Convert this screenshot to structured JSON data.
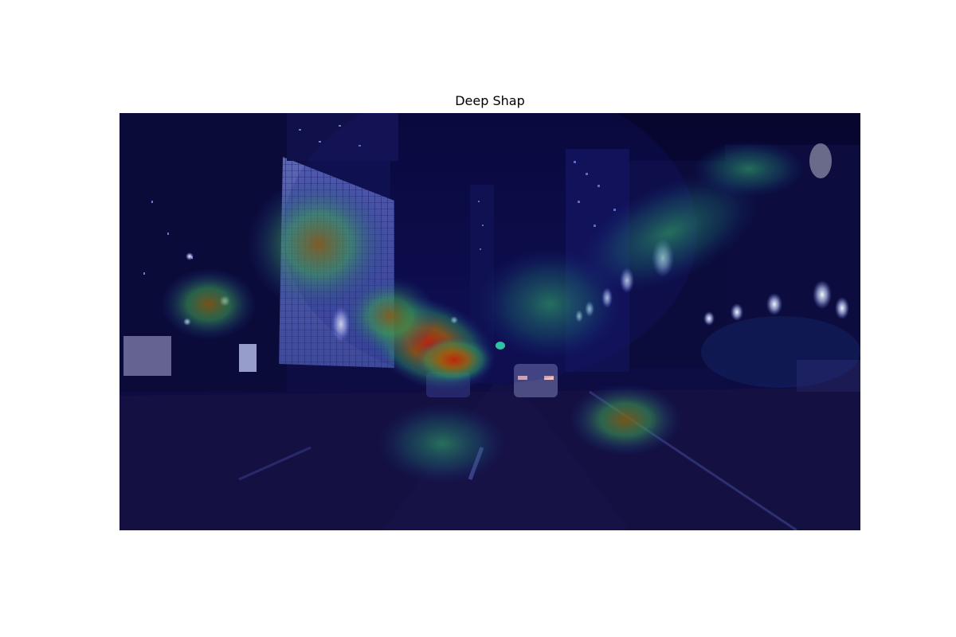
{
  "figure": {
    "title": "Deep Shap"
  },
  "image": {
    "subject": "night-city-street-photo",
    "overlay": "heatmap",
    "colors": {
      "sky": "#0a0a3a",
      "road": "#131040",
      "low_attribution": "#1b1a8a",
      "mid_attribution": "#2ea86a",
      "high_attribution": "#c21a0a"
    }
  }
}
